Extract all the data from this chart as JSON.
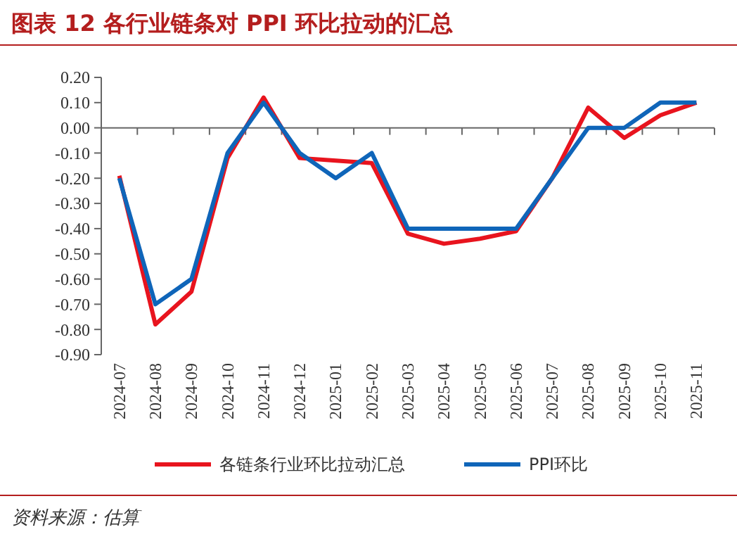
{
  "chart_data": {
    "type": "line",
    "title": "图表 12    各行业链条对 PPI 环比拉动的汇总",
    "categories": [
      "2024-07",
      "2024-08",
      "2024-09",
      "2024-10",
      "2024-11",
      "2024-12",
      "2025-01",
      "2025-02",
      "2025-03",
      "2025-04",
      "2025-05",
      "2025-06",
      "2025-07",
      "2025-08",
      "2025-09",
      "2025-10",
      "2025-11"
    ],
    "series": [
      {
        "name": "各链条行业环比拉动汇总",
        "color": "#e8141e",
        "values": [
          -0.19,
          -0.78,
          -0.65,
          -0.12,
          0.12,
          -0.12,
          -0.13,
          -0.14,
          -0.42,
          -0.46,
          -0.44,
          -0.41,
          -0.2,
          0.08,
          -0.04,
          0.05,
          0.1
        ]
      },
      {
        "name": "PPI环比",
        "color": "#0f65b9",
        "values": [
          -0.2,
          -0.7,
          -0.6,
          -0.1,
          0.1,
          -0.1,
          -0.2,
          -0.1,
          -0.4,
          -0.4,
          -0.4,
          -0.4,
          -0.2,
          0.0,
          0.0,
          0.1,
          0.1
        ]
      }
    ],
    "ylim": [
      -0.9,
      0.2
    ],
    "yticks": [
      {
        "value": 0.2,
        "label": "0.20"
      },
      {
        "value": 0.1,
        "label": "0.10"
      },
      {
        "value": 0,
        "label": "0.00"
      },
      {
        "value": -0.1,
        "label": "-0.10"
      },
      {
        "value": -0.2,
        "label": "-0.20"
      },
      {
        "value": -0.3,
        "label": "-0.30"
      },
      {
        "value": -0.4,
        "label": "-0.40"
      },
      {
        "value": -0.5,
        "label": "-0.50"
      },
      {
        "value": -0.6,
        "label": "-0.60"
      },
      {
        "value": -0.7,
        "label": "-0.70"
      },
      {
        "value": -0.8,
        "label": "-0.80"
      },
      {
        "value": -0.9,
        "label": "-0.90"
      }
    ],
    "legend": "bottom",
    "marker": "none",
    "line_style": "solid",
    "annotations": [
      "资料来源：估算"
    ]
  }
}
